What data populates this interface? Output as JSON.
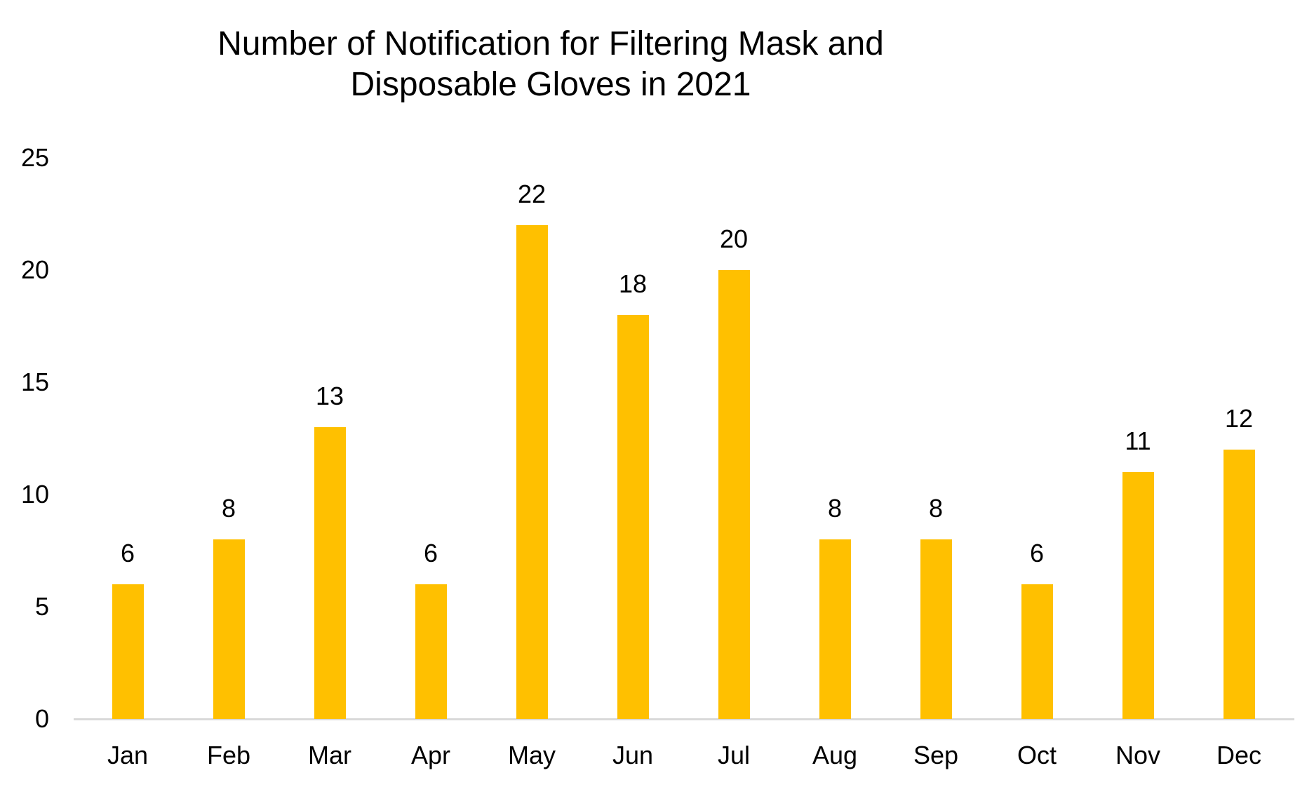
{
  "chart_data": {
    "type": "bar",
    "title": "Number of Notification for Filtering Mask and Disposable Gloves in 2021",
    "title_lines": [
      "Number of Notification for Filtering Mask and",
      "Disposable Gloves in 2021"
    ],
    "categories": [
      "Jan",
      "Feb",
      "Mar",
      "Apr",
      "May",
      "Jun",
      "Jul",
      "Aug",
      "Sep",
      "Oct",
      "Nov",
      "Dec"
    ],
    "values": [
      6,
      8,
      13,
      6,
      22,
      18,
      20,
      8,
      8,
      6,
      11,
      12
    ],
    "xlabel": "",
    "ylabel": "",
    "ylim": [
      0,
      25
    ],
    "yticks": [
      0,
      5,
      10,
      15,
      20,
      25
    ],
    "grid": false,
    "legend": "none",
    "data_labels_shown": true,
    "bar_color": "#FFC000",
    "axis_line_color": "#D9D9D9",
    "text_color": "#000000",
    "background_color": "#FFFFFF"
  }
}
